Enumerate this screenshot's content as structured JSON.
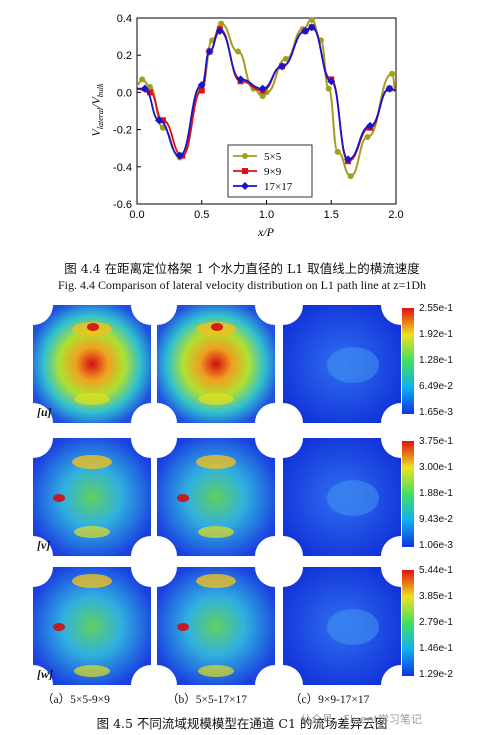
{
  "chart_data": {
    "type": "line",
    "xlabel": "x/P",
    "ylabel": "V_lateral/V_bulk",
    "xlim": [
      0.0,
      2.0
    ],
    "ylim": [
      -0.6,
      0.4
    ],
    "xticks": [
      "0.0",
      "0.5",
      "1.0",
      "1.5",
      "2.0"
    ],
    "yticks": [
      "0.4",
      "0.2",
      "0.0",
      "-0.2",
      "-0.4",
      "-0.6"
    ],
    "legend_position": "bottom-center",
    "series": [
      {
        "name": "5×5",
        "color": "#a0a020",
        "marker": "circle",
        "x": [
          0.0,
          0.04,
          0.1,
          0.2,
          0.33,
          0.5,
          0.58,
          0.65,
          0.78,
          0.9,
          0.97,
          1.0,
          1.15,
          1.28,
          1.35,
          1.42,
          1.48,
          1.55,
          1.65,
          1.78,
          1.97,
          2.0
        ],
        "y": [
          0.04,
          0.07,
          0.03,
          -0.19,
          -0.35,
          0.02,
          0.28,
          0.37,
          0.22,
          0.02,
          -0.02,
          0.0,
          0.18,
          0.34,
          0.39,
          0.28,
          0.02,
          -0.32,
          -0.45,
          -0.24,
          0.1,
          0.0
        ]
      },
      {
        "name": "9×9",
        "color": "#e01010",
        "marker": "square",
        "x": [
          0.0,
          0.1,
          0.2,
          0.35,
          0.5,
          0.56,
          0.64,
          0.8,
          0.97,
          1.12,
          1.3,
          1.35,
          1.5,
          1.63,
          1.8,
          1.95,
          2.0
        ],
        "y": [
          0.02,
          0.0,
          -0.15,
          -0.34,
          0.01,
          0.22,
          0.34,
          0.06,
          0.01,
          0.14,
          0.33,
          0.35,
          0.07,
          -0.37,
          -0.19,
          0.02,
          0.01
        ]
      },
      {
        "name": "17×17",
        "color": "#1515d0",
        "marker": "diamond",
        "x": [
          0.0,
          0.06,
          0.17,
          0.33,
          0.5,
          0.56,
          0.64,
          0.8,
          0.97,
          1.12,
          1.3,
          1.35,
          1.5,
          1.63,
          1.8,
          1.95,
          2.0
        ],
        "y": [
          0.02,
          0.02,
          -0.15,
          -0.34,
          0.04,
          0.22,
          0.33,
          0.07,
          0.02,
          0.14,
          0.33,
          0.35,
          0.06,
          -0.36,
          -0.18,
          0.02,
          0.01
        ]
      }
    ]
  },
  "fig44": {
    "caption_cn": "图 4.4 在距离定位格架 1 个水力直径的 L1 取值线上的横流速度",
    "caption_en": "Fig. 4.4 Comparison of lateral velocity distribution on L1 path line at z=1Dh"
  },
  "fig45": {
    "rows": [
      {
        "label": "[u]",
        "colorbar": [
          "2.55e-1",
          "1.92e-1",
          "1.28e-1",
          "6.49e-2",
          "1.65e-3"
        ]
      },
      {
        "label": "[v]",
        "colorbar": [
          "3.75e-1",
          "3.00e-1",
          "1.88e-1",
          "9.43e-2",
          "1.06e-3"
        ]
      },
      {
        "label": "[w]",
        "colorbar": [
          "5.44e-1",
          "3.85e-1",
          "2.79e-1",
          "1.46e-1",
          "1.29e-2"
        ]
      }
    ],
    "sublabels": [
      "（a）5×5-9×9",
      "（b）5×5-17×17",
      "（c）9×9-17×17"
    ],
    "caption_cn": "图 4.5 不同流域规模模型在通道 C1 的流场差异云图",
    "watermark": "公众号 · Fluent学习笔记",
    "colors": {
      "jet_high": "#d01010",
      "jet_low": "#1030e0"
    }
  }
}
